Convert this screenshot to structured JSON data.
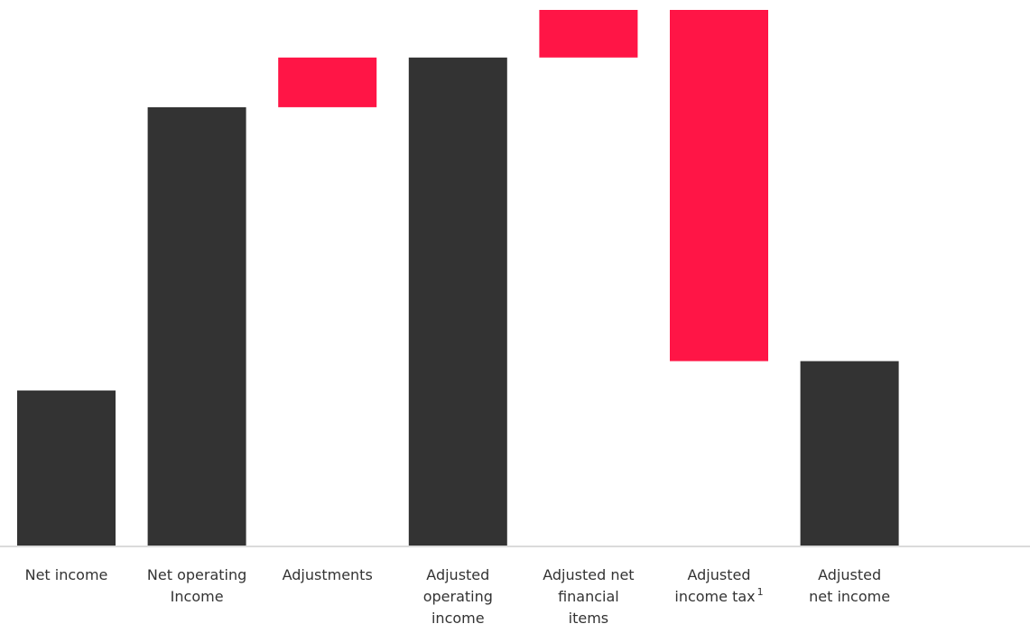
{
  "chart_data": {
    "type": "bar",
    "subtype": "waterfall",
    "title": "",
    "xlabel": "",
    "ylabel": "",
    "categories": [
      {
        "lines": [
          "Net income"
        ],
        "footnote": ""
      },
      {
        "lines": [
          "Net operating",
          "Income"
        ],
        "footnote": ""
      },
      {
        "lines": [
          "Adjustments"
        ],
        "footnote": ""
      },
      {
        "lines": [
          "Adjusted",
          "operating",
          "income"
        ],
        "footnote": ""
      },
      {
        "lines": [
          "Adjusted net",
          "financial",
          "items"
        ],
        "footnote": ""
      },
      {
        "lines": [
          "Adjusted",
          "income tax"
        ],
        "footnote": "1"
      },
      {
        "lines": [
          "Adjusted",
          "net income"
        ],
        "footnote": ""
      }
    ],
    "bars": [
      {
        "kind": "total",
        "start": 0,
        "end": 29
      },
      {
        "kind": "total",
        "start": 0,
        "end": 82
      },
      {
        "kind": "delta",
        "start": 82,
        "end": 91.3
      },
      {
        "kind": "total",
        "start": 0,
        "end": 91.3
      },
      {
        "kind": "delta",
        "start": 91.3,
        "end": 100.2
      },
      {
        "kind": "delta",
        "start": 100.2,
        "end": 34.5
      },
      {
        "kind": "total",
        "start": 0,
        "end": 34.5
      }
    ],
    "ylim": [
      0,
      100.2
    ],
    "colors": {
      "total": "#333333",
      "delta": "#ff1546",
      "axis": "#cfcfcf",
      "label": "#333333"
    },
    "grid": false,
    "legend": "none"
  }
}
